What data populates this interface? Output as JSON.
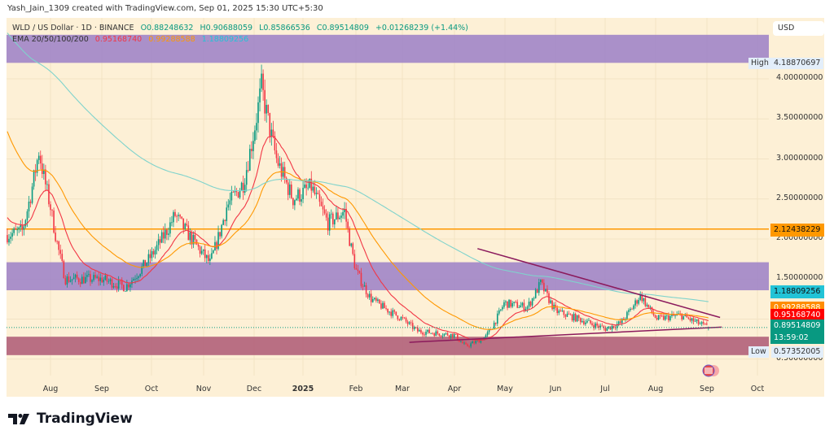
{
  "credit": "Yash_Jain_1309 created with TradingView.com, Sep 01, 2025 15:30 UTC+5:30",
  "legend": {
    "symbol": "WLD / US Dollar · 1D · BINANCE",
    "open": "O0.88248632",
    "high": "H0.90688059",
    "low": "L0.85866536",
    "close": "C0.89514809",
    "change": "+0.01268239 (+1.44%)",
    "ema_label": "EMA 20/50/100/200",
    "ema_values": [
      "0.95168740",
      "0.99288588",
      "1.18809256"
    ]
  },
  "currency": "USD",
  "price_axis": {
    "ticks": [
      "4.00000000",
      "3.50000000",
      "3.00000000",
      "2.50000000",
      "2.00000000",
      "1.50000000",
      "0.50000000"
    ],
    "tick_values": [
      4.0,
      3.5,
      3.0,
      2.5,
      2.0,
      1.5,
      0.5
    ],
    "high_label": "High",
    "high_value": "4.18870697",
    "low_label": "Low",
    "low_value": "0.57352005",
    "tags": [
      {
        "value": "2.12438229",
        "color": "#ff9800"
      },
      {
        "value": "1.18809256",
        "color": "#22c3d6"
      },
      {
        "value": "0.99288588",
        "color": "#ff8c00"
      },
      {
        "value": "0.95168740",
        "color": "#ff0000"
      },
      {
        "value": "0.89514809",
        "color": "#089981",
        "sub": "13:59:02"
      }
    ]
  },
  "time_axis": [
    "Aug",
    "Sep",
    "Oct",
    "Nov",
    "Dec",
    "2025",
    "Feb",
    "Mar",
    "Apr",
    "May",
    "Jun",
    "Jul",
    "Aug",
    "Sep",
    "Oct"
  ],
  "colors": {
    "background": "#fdf0d6",
    "up": "#089981",
    "down": "#f23645",
    "ema20": "#f23645",
    "ema50": "#ff9800",
    "ema200": "#7fd3cc",
    "zone_purple": "#9b7fc7",
    "zone_maroon": "#b5677e",
    "triangle": "#8b1a5c",
    "level": "#ff9800"
  },
  "chart_data": {
    "type": "candlestick",
    "title": "WLD / US Dollar · 1D · BINANCE",
    "approx_close_path": [
      [
        "2024-07-06",
        2.05
      ],
      [
        "2024-07-15",
        2.1
      ],
      [
        "2024-07-25",
        3.1
      ],
      [
        "2024-08-01",
        2.4
      ],
      [
        "2024-08-10",
        1.5
      ],
      [
        "2024-09-01",
        1.5
      ],
      [
        "2024-09-15",
        1.4
      ],
      [
        "2024-10-01",
        1.8
      ],
      [
        "2024-10-15",
        2.3
      ],
      [
        "2024-10-25",
        2.0
      ],
      [
        "2024-11-05",
        1.7
      ],
      [
        "2024-11-15",
        2.4
      ],
      [
        "2024-11-25",
        2.7
      ],
      [
        "2024-12-06",
        3.9
      ],
      [
        "2024-12-15",
        3.0
      ],
      [
        "2024-12-25",
        2.5
      ],
      [
        "2025-01-05",
        2.65
      ],
      [
        "2025-01-15",
        2.2
      ],
      [
        "2025-01-25",
        2.35
      ],
      [
        "2025-02-01",
        1.6
      ],
      [
        "2025-02-10",
        1.25
      ],
      [
        "2025-03-01",
        1.0
      ],
      [
        "2025-03-10",
        0.85
      ],
      [
        "2025-04-01",
        0.8
      ],
      [
        "2025-04-08",
        0.66
      ],
      [
        "2025-04-20",
        0.78
      ],
      [
        "2025-05-01",
        1.2
      ],
      [
        "2025-05-15",
        1.15
      ],
      [
        "2025-05-23",
        1.45
      ],
      [
        "2025-06-01",
        1.1
      ],
      [
        "2025-06-15",
        1.0
      ],
      [
        "2025-07-01",
        0.88
      ],
      [
        "2025-07-10",
        0.95
      ],
      [
        "2025-07-22",
        1.3
      ],
      [
        "2025-08-01",
        1.0
      ],
      [
        "2025-08-15",
        1.05
      ],
      [
        "2025-09-01",
        0.895
      ]
    ],
    "last_candle": {
      "open": 0.88248632,
      "high": 0.90688059,
      "low": 0.85866536,
      "close": 0.89514809
    },
    "all_time_high_visible": 4.18870697,
    "low_visible": 0.57352005,
    "ema_periods": [
      20,
      50,
      100,
      200
    ],
    "horizontal_level": 2.12438229,
    "zones": [
      {
        "from": 4.2,
        "to": 4.55,
        "color": "purple"
      },
      {
        "from": 1.36,
        "to": 1.71,
        "color": "purple"
      },
      {
        "from": 0.55,
        "to": 0.78,
        "color": "maroon"
      }
    ],
    "trendlines": [
      {
        "name": "",
        "from": [
          "2025-04-15",
          1.88
        ],
        "to": [
          "2025-09-08",
          1.02
        ]
      },
      {
        "name": "",
        "from": [
          "2025-03-05",
          0.71
        ],
        "to": [
          "2025-09-09",
          0.9
        ]
      }
    ],
    "ylim": [
      0.3,
      4.6
    ],
    "grid": true
  },
  "branding": {
    "logo_text": "TradingView"
  }
}
